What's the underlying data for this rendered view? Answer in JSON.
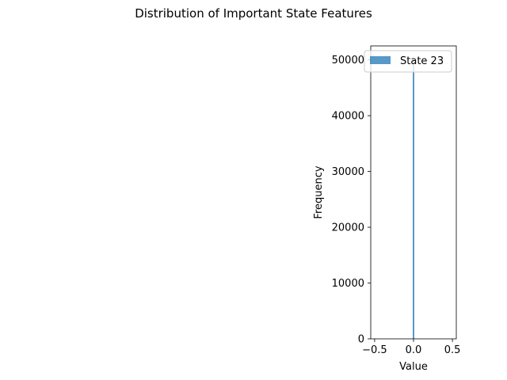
{
  "chart_data": {
    "type": "bar",
    "title": "Distribution of Important State Features",
    "xlabel": "Value",
    "ylabel": "Frequency",
    "xlim": [
      -0.55,
      0.55
    ],
    "ylim": [
      0,
      52500
    ],
    "xticks": [
      -0.5,
      0.0,
      0.5
    ],
    "xtick_labels": [
      "−0.5",
      "0.0",
      "0.5"
    ],
    "yticks": [
      0,
      10000,
      20000,
      30000,
      40000,
      50000
    ],
    "ytick_labels": [
      "0",
      "10000",
      "20000",
      "30000",
      "40000",
      "50000"
    ],
    "series": [
      {
        "name": "State 23",
        "color": "#1f77b4",
        "opacity": 0.75,
        "bins": [
          {
            "x": 0.0,
            "value": 50000
          }
        ]
      }
    ],
    "legend_placement": "top-right",
    "grid": false
  }
}
